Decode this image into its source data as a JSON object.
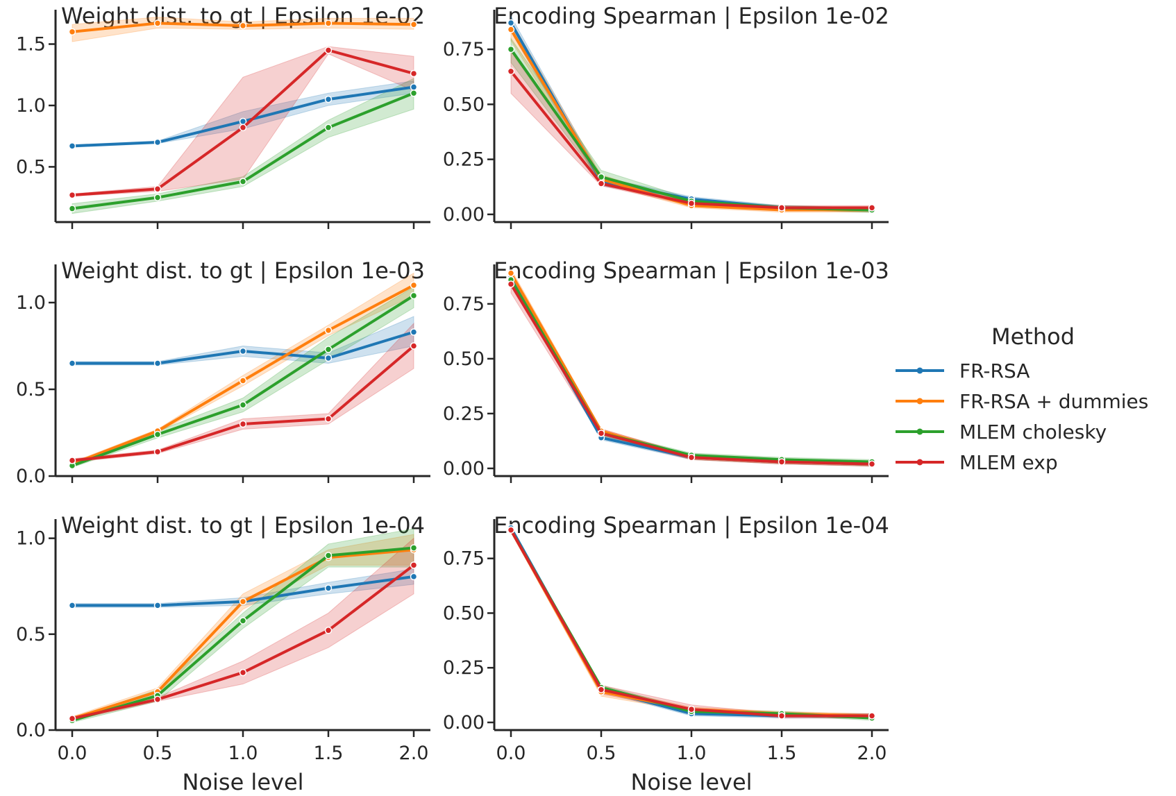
{
  "legend": {
    "title": "Method",
    "entries": [
      {
        "label": "FR-RSA",
        "color": "#1f77b4"
      },
      {
        "label": "FR-RSA + dummies",
        "color": "#ff7f0e"
      },
      {
        "label": "MLEM cholesky",
        "color": "#2ca02c"
      },
      {
        "label": "MLEM exp",
        "color": "#d62728"
      }
    ]
  },
  "chart_data": [
    {
      "type": "line",
      "title": "Weight dist. to gt | Epsilon 1e-02",
      "xlabel": "",
      "ylabel": "",
      "x": [
        0.0,
        0.5,
        1.0,
        1.5,
        2.0
      ],
      "xticks": [
        "",
        "",
        "",
        "",
        ""
      ],
      "ylim": [
        0.05,
        1.78
      ],
      "yticks": [
        "0.5",
        "1.0",
        "1.5"
      ],
      "ytick_values": [
        0.5,
        1.0,
        1.5
      ],
      "series": [
        {
          "name": "FR-RSA",
          "values": [
            0.67,
            0.7,
            0.87,
            1.05,
            1.15
          ],
          "lower": [
            0.66,
            0.69,
            0.81,
            1.0,
            1.1
          ],
          "upper": [
            0.68,
            0.71,
            0.95,
            1.1,
            1.2
          ]
        },
        {
          "name": "FR-RSA + dummies",
          "values": [
            1.6,
            1.67,
            1.65,
            1.67,
            1.66
          ],
          "lower": [
            1.52,
            1.63,
            1.62,
            1.63,
            1.62
          ],
          "upper": [
            1.66,
            1.72,
            1.68,
            1.71,
            1.71
          ]
        },
        {
          "name": "MLEM cholesky",
          "values": [
            0.16,
            0.25,
            0.38,
            0.82,
            1.1
          ],
          "lower": [
            0.12,
            0.22,
            0.34,
            0.74,
            0.97
          ],
          "upper": [
            0.2,
            0.28,
            0.42,
            0.88,
            1.22
          ]
        },
        {
          "name": "MLEM exp",
          "values": [
            0.27,
            0.32,
            0.82,
            1.45,
            1.26
          ],
          "lower": [
            0.26,
            0.3,
            0.4,
            1.42,
            1.12
          ],
          "upper": [
            0.28,
            0.34,
            1.23,
            1.48,
            1.4
          ]
        }
      ]
    },
    {
      "type": "line",
      "title": "Encoding Spearman | Epsilon 1e-02",
      "xlabel": "",
      "ylabel": "",
      "x": [
        0.0,
        0.5,
        1.0,
        1.5,
        2.0
      ],
      "xticks": [
        "",
        "",
        "",
        "",
        ""
      ],
      "ylim": [
        -0.035,
        0.93
      ],
      "yticks": [
        "0.00",
        "0.25",
        "0.50",
        "0.75"
      ],
      "ytick_values": [
        0.0,
        0.25,
        0.5,
        0.75
      ],
      "series": [
        {
          "name": "FR-RSA",
          "values": [
            0.87,
            0.15,
            0.07,
            0.03,
            0.02
          ],
          "lower": [
            0.83,
            0.13,
            0.06,
            0.02,
            0.01
          ],
          "upper": [
            0.9,
            0.17,
            0.08,
            0.04,
            0.03
          ]
        },
        {
          "name": "FR-RSA + dummies",
          "values": [
            0.84,
            0.16,
            0.04,
            0.02,
            0.02
          ],
          "lower": [
            0.79,
            0.14,
            0.03,
            0.01,
            0.01
          ],
          "upper": [
            0.88,
            0.18,
            0.05,
            0.03,
            0.03
          ]
        },
        {
          "name": "MLEM cholesky",
          "values": [
            0.75,
            0.17,
            0.06,
            0.03,
            0.02
          ],
          "lower": [
            0.69,
            0.15,
            0.05,
            0.02,
            0.01
          ],
          "upper": [
            0.8,
            0.2,
            0.07,
            0.04,
            0.03
          ]
        },
        {
          "name": "MLEM exp",
          "values": [
            0.65,
            0.14,
            0.05,
            0.03,
            0.03
          ],
          "lower": [
            0.55,
            0.13,
            0.04,
            0.02,
            0.02
          ],
          "upper": [
            0.74,
            0.16,
            0.06,
            0.04,
            0.04
          ]
        }
      ]
    },
    {
      "type": "line",
      "title": "Weight dist. to gt | Epsilon 1e-03",
      "xlabel": "",
      "ylabel": "",
      "x": [
        0.0,
        0.5,
        1.0,
        1.5,
        2.0
      ],
      "xticks": [
        "",
        "",
        "",
        "",
        ""
      ],
      "ylim": [
        0.0,
        1.22
      ],
      "yticks": [
        "0.0",
        "0.5",
        "1.0"
      ],
      "ytick_values": [
        0.0,
        0.5,
        1.0
      ],
      "series": [
        {
          "name": "FR-RSA",
          "values": [
            0.65,
            0.65,
            0.72,
            0.68,
            0.83
          ],
          "lower": [
            0.64,
            0.64,
            0.69,
            0.65,
            0.75
          ],
          "upper": [
            0.66,
            0.66,
            0.75,
            0.71,
            0.92
          ]
        },
        {
          "name": "FR-RSA + dummies",
          "values": [
            0.07,
            0.26,
            0.55,
            0.84,
            1.1
          ],
          "lower": [
            0.06,
            0.25,
            0.52,
            0.81,
            1.04
          ],
          "upper": [
            0.08,
            0.27,
            0.58,
            0.87,
            1.17
          ]
        },
        {
          "name": "MLEM cholesky",
          "values": [
            0.06,
            0.24,
            0.41,
            0.73,
            1.04
          ],
          "lower": [
            0.05,
            0.22,
            0.37,
            0.67,
            0.97
          ],
          "upper": [
            0.07,
            0.26,
            0.45,
            0.8,
            1.09
          ]
        },
        {
          "name": "MLEM exp",
          "values": [
            0.09,
            0.14,
            0.3,
            0.33,
            0.75
          ],
          "lower": [
            0.08,
            0.13,
            0.27,
            0.3,
            0.62
          ],
          "upper": [
            0.1,
            0.15,
            0.33,
            0.36,
            0.88
          ]
        }
      ]
    },
    {
      "type": "line",
      "title": "Encoding Spearman | Epsilon 1e-03",
      "xlabel": "",
      "ylabel": "",
      "x": [
        0.0,
        0.5,
        1.0,
        1.5,
        2.0
      ],
      "xticks": [
        "",
        "",
        "",
        "",
        ""
      ],
      "ylim": [
        -0.035,
        0.93
      ],
      "yticks": [
        "0.00",
        "0.25",
        "0.50",
        "0.75"
      ],
      "ytick_values": [
        0.0,
        0.25,
        0.5,
        0.75
      ],
      "series": [
        {
          "name": "FR-RSA",
          "values": [
            0.87,
            0.14,
            0.05,
            0.03,
            0.02
          ],
          "lower": [
            0.85,
            0.13,
            0.04,
            0.02,
            0.01
          ],
          "upper": [
            0.89,
            0.15,
            0.06,
            0.04,
            0.03
          ]
        },
        {
          "name": "FR-RSA + dummies",
          "values": [
            0.89,
            0.17,
            0.05,
            0.03,
            0.02
          ],
          "lower": [
            0.87,
            0.16,
            0.04,
            0.02,
            0.01
          ],
          "upper": [
            0.91,
            0.18,
            0.06,
            0.04,
            0.03
          ]
        },
        {
          "name": "MLEM cholesky",
          "values": [
            0.86,
            0.16,
            0.06,
            0.04,
            0.03
          ],
          "lower": [
            0.84,
            0.15,
            0.05,
            0.03,
            0.02
          ],
          "upper": [
            0.88,
            0.17,
            0.07,
            0.05,
            0.04
          ]
        },
        {
          "name": "MLEM exp",
          "values": [
            0.84,
            0.16,
            0.05,
            0.03,
            0.02
          ],
          "lower": [
            0.8,
            0.14,
            0.04,
            0.02,
            0.01
          ],
          "upper": [
            0.88,
            0.18,
            0.06,
            0.04,
            0.03
          ]
        }
      ]
    },
    {
      "type": "line",
      "title": "Weight dist. to gt | Epsilon 1e-04",
      "xlabel": "Noise level",
      "ylabel": "",
      "x": [
        0.0,
        0.5,
        1.0,
        1.5,
        2.0
      ],
      "xticks": [
        "0.0",
        "0.5",
        "1.0",
        "1.5",
        "2.0"
      ],
      "ylim": [
        0.0,
        1.1
      ],
      "yticks": [
        "0.0",
        "0.5",
        "1.0"
      ],
      "ytick_values": [
        0.0,
        0.5,
        1.0
      ],
      "series": [
        {
          "name": "FR-RSA",
          "values": [
            0.65,
            0.65,
            0.67,
            0.74,
            0.8
          ],
          "lower": [
            0.64,
            0.64,
            0.65,
            0.71,
            0.76
          ],
          "upper": [
            0.66,
            0.66,
            0.69,
            0.77,
            0.84
          ]
        },
        {
          "name": "FR-RSA + dummies",
          "values": [
            0.06,
            0.2,
            0.67,
            0.9,
            0.94
          ],
          "lower": [
            0.05,
            0.18,
            0.63,
            0.86,
            0.86
          ],
          "upper": [
            0.07,
            0.22,
            0.71,
            0.94,
            1.02
          ]
        },
        {
          "name": "MLEM cholesky",
          "values": [
            0.05,
            0.18,
            0.57,
            0.91,
            0.95
          ],
          "lower": [
            0.04,
            0.15,
            0.53,
            0.85,
            0.85
          ],
          "upper": [
            0.06,
            0.21,
            0.61,
            0.97,
            1.05
          ]
        },
        {
          "name": "MLEM exp",
          "values": [
            0.06,
            0.16,
            0.3,
            0.52,
            0.86
          ],
          "lower": [
            0.05,
            0.15,
            0.24,
            0.43,
            0.71
          ],
          "upper": [
            0.07,
            0.17,
            0.36,
            0.61,
            1.0
          ]
        }
      ]
    },
    {
      "type": "line",
      "title": "Encoding Spearman | Epsilon 1e-04",
      "xlabel": "Noise level",
      "ylabel": "",
      "x": [
        0.0,
        0.5,
        1.0,
        1.5,
        2.0
      ],
      "xticks": [
        "0.0",
        "0.5",
        "1.0",
        "1.5",
        "2.0"
      ],
      "ylim": [
        -0.035,
        0.93
      ],
      "yticks": [
        "0.00",
        "0.25",
        "0.50",
        "0.75"
      ],
      "ytick_values": [
        0.0,
        0.25,
        0.5,
        0.75
      ],
      "series": [
        {
          "name": "FR-RSA",
          "values": [
            0.89,
            0.15,
            0.04,
            0.03,
            0.03
          ],
          "lower": [
            0.88,
            0.14,
            0.03,
            0.02,
            0.02
          ],
          "upper": [
            0.9,
            0.16,
            0.05,
            0.04,
            0.04
          ]
        },
        {
          "name": "FR-RSA + dummies",
          "values": [
            0.88,
            0.14,
            0.06,
            0.04,
            0.03
          ],
          "lower": [
            0.87,
            0.12,
            0.05,
            0.03,
            0.02
          ],
          "upper": [
            0.89,
            0.16,
            0.07,
            0.05,
            0.04
          ]
        },
        {
          "name": "MLEM cholesky",
          "values": [
            0.88,
            0.16,
            0.05,
            0.04,
            0.02
          ],
          "lower": [
            0.87,
            0.15,
            0.04,
            0.03,
            0.01
          ],
          "upper": [
            0.89,
            0.17,
            0.06,
            0.05,
            0.03
          ]
        },
        {
          "name": "MLEM exp",
          "values": [
            0.88,
            0.15,
            0.06,
            0.03,
            0.03
          ],
          "lower": [
            0.87,
            0.13,
            0.05,
            0.02,
            0.02
          ],
          "upper": [
            0.89,
            0.17,
            0.08,
            0.04,
            0.04
          ]
        }
      ]
    }
  ]
}
